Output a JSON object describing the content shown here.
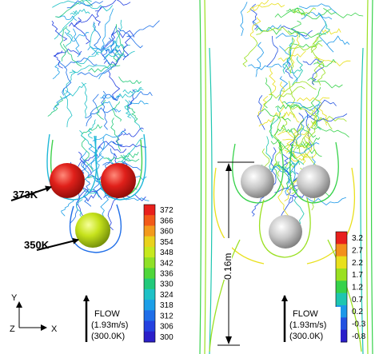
{
  "left_panel": {
    "sphere_label_top": "373K",
    "sphere_label_bottom": "350K",
    "colorbar": {
      "ticks": [
        "372",
        "366",
        "360",
        "354",
        "348",
        "342",
        "336",
        "330",
        "324",
        "318",
        "312",
        "306",
        "300"
      ],
      "colors": [
        "#e8201c",
        "#f25a18",
        "#f39a1c",
        "#e9d21c",
        "#c6e81e",
        "#8fe027",
        "#4fd63a",
        "#22c97a",
        "#1ec1c6",
        "#1c9fe8",
        "#1f6ee8",
        "#2441e0",
        "#2b1fc9"
      ]
    },
    "axis_y": "Y",
    "axis_z": "Z",
    "axis_x": "X",
    "flow_label": "FLOW",
    "flow_speed": "(1.93m/s)",
    "flow_temp": "(300.0K)"
  },
  "right_panel": {
    "dimension_label": "0.16m",
    "colorbar": {
      "ticks": [
        "3.2",
        "2.7",
        "2.2",
        "1.7",
        "1.2",
        "0.7",
        "0.2",
        "-0.3",
        "-0.8"
      ],
      "colors": [
        "#e8201c",
        "#f3901c",
        "#e9e01c",
        "#9ae020",
        "#36d24a",
        "#1ec6b0",
        "#1c98e8",
        "#2352e0",
        "#2b1fc9"
      ]
    },
    "flow_label": "FLOW",
    "flow_speed": "(1.93m/s)",
    "flow_temp": "(300.0K)"
  }
}
